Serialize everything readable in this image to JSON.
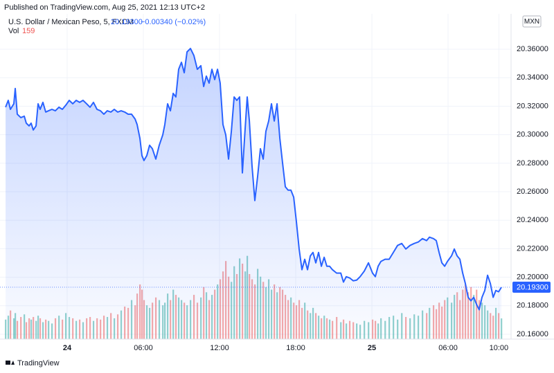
{
  "published": "Published on TradingView.com, Aug 25, 2021 12:13 UTC+2",
  "footer": "TradingView",
  "chart_data": {
    "type": "area",
    "title": "U.S. Dollar / Mexican Peso, 5, FXCM",
    "price_label": "20.19300",
    "change_label": "−0.00340 (−0.02%)",
    "currency": "MXN",
    "volume_title": "Vol",
    "volume_last": 159,
    "current": {
      "value": 20.193,
      "label": "20.19300"
    },
    "color": "#2962ff",
    "up_color": "rgba(38,166,154,0.5)",
    "down_color": "rgba(239,83,80,0.5)",
    "grid": true,
    "x": [
      -4.85,
      -4.64,
      -4.47,
      -4.2,
      -4.09,
      -3.93,
      -3.65,
      -3.38,
      -3.22,
      -3.0,
      -2.84,
      -2.67,
      -2.45,
      -2.29,
      -2.13,
      -1.91,
      -1.69,
      -1.47,
      -1.2,
      -0.93,
      -0.65,
      -0.38,
      -0.11,
      0.16,
      0.44,
      0.71,
      0.98,
      1.25,
      1.53,
      1.8,
      2.07,
      2.35,
      2.62,
      2.89,
      3.16,
      3.44,
      3.71,
      3.98,
      4.25,
      4.53,
      4.8,
      5.07,
      5.35,
      5.51,
      5.73,
      5.89,
      6.05,
      6.27,
      6.49,
      6.71,
      6.98,
      7.25,
      7.53,
      7.69,
      7.91,
      8.13,
      8.35,
      8.56,
      8.78,
      9.0,
      9.22,
      9.44,
      9.71,
      9.98,
      10.25,
      10.53,
      10.75,
      10.96,
      11.18,
      11.4,
      11.62,
      11.84,
      12.05,
      12.27,
      12.49,
      12.71,
      12.93,
      13.15,
      13.36,
      13.58,
      13.8,
      14.02,
      14.18,
      14.35,
      14.56,
      14.78,
      15.0,
      15.22,
      15.44,
      15.65,
      15.87,
      16.09,
      16.31,
      16.53,
      16.75,
      16.96,
      17.18,
      17.4,
      17.62,
      17.84,
      18.05,
      18.27,
      18.49,
      18.71,
      18.93,
      19.15,
      19.36,
      19.58,
      19.8,
      20.02,
      20.24,
      20.45,
      20.67,
      20.89,
      21.22,
      21.55,
      21.76,
      21.98,
      22.25,
      22.53,
      22.8,
      23.07,
      23.4,
      23.73,
      24.05,
      24.27,
      24.49,
      24.71,
      25.04,
      25.36,
      25.69,
      26.02,
      26.35,
      26.67,
      27.0,
      27.33,
      27.65,
      27.98,
      28.31,
      28.53,
      28.85,
      29.07,
      29.29,
      29.51,
      29.73,
      29.95,
      30.27,
      30.49,
      30.71,
      30.93,
      31.15,
      31.36,
      31.58,
      31.8,
      32.02,
      32.24,
      32.45,
      32.67,
      32.89,
      33.11,
      33.33,
      33.55,
      33.76,
      33.98,
      34.2
    ],
    "series": [
      {
        "name": "U.S. Dollar / Mexican Peso",
        "color": "#2962ff",
        "values": [
          20.3193,
          20.3241,
          20.3178,
          20.3217,
          20.3324,
          20.3144,
          20.312,
          20.313,
          20.3081,
          20.3062,
          20.3081,
          20.3033,
          20.3062,
          20.3217,
          20.3178,
          20.3227,
          20.3159,
          20.3168,
          20.3178,
          20.3168,
          20.3193,
          20.3178,
          20.3207,
          20.3241,
          20.3217,
          20.3241,
          20.3227,
          20.3241,
          20.3217,
          20.3193,
          20.3227,
          20.3178,
          20.3168,
          20.3144,
          20.3168,
          20.3159,
          20.3178,
          20.3159,
          20.3168,
          20.3159,
          20.3144,
          20.3144,
          20.311,
          20.3071,
          20.2974,
          20.2853,
          20.2819,
          20.2853,
          20.2926,
          20.2902,
          20.2829,
          20.2926,
          20.2999,
          20.3071,
          20.3217,
          20.3168,
          20.329,
          20.3265,
          20.3459,
          20.3508,
          20.3435,
          20.3581,
          20.3605,
          20.3556,
          20.3459,
          20.3484,
          20.3338,
          20.3411,
          20.3362,
          20.3459,
          20.3387,
          20.3459,
          20.3362,
          20.3071,
          20.2999,
          20.2829,
          20.3023,
          20.3265,
          20.3241,
          20.3265,
          20.2732,
          20.3047,
          20.3265,
          20.3096,
          20.278,
          20.2538,
          20.2708,
          20.2902,
          20.2829,
          20.3023,
          20.3096,
          20.3217,
          20.3096,
          20.3217,
          20.2974,
          20.2805,
          20.2635,
          20.2611,
          20.2611,
          20.2562,
          20.2392,
          20.2198,
          20.2053,
          20.2126,
          20.2053,
          20.215,
          20.2174,
          20.2101,
          20.2174,
          20.2077,
          20.214,
          20.2077,
          20.2077,
          20.2053,
          20.2029,
          20.2029,
          20.1966,
          20.2004,
          20.1995,
          20.1975,
          20.198,
          20.2004,
          20.2043,
          20.2101,
          20.2029,
          20.2004,
          20.2077,
          20.2111,
          20.2126,
          20.2126,
          20.2174,
          20.2223,
          20.2237,
          20.2198,
          20.2223,
          20.2237,
          20.2247,
          20.2271,
          20.2257,
          20.2281,
          20.2271,
          20.2257,
          20.2174,
          20.2101,
          20.2077,
          20.2111,
          20.215,
          20.2198,
          20.215,
          20.2126,
          20.2029,
          20.1956,
          20.1859,
          20.1835,
          20.1859,
          20.181,
          20.1772,
          20.1859,
          20.1907,
          20.2014,
          20.1956,
          20.1859,
          20.1907,
          20.1898,
          20.193
        ]
      },
      {
        "name": "Vol",
        "axis": "y2",
        "values": [
          150,
          180,
          220,
          160,
          200,
          140,
          170,
          190,
          130,
          160,
          150,
          170,
          140,
          180,
          160,
          130,
          150,
          140,
          120,
          160,
          180,
          150,
          200,
          170,
          160,
          140,
          150,
          130,
          160,
          170,
          140,
          160,
          150,
          180,
          170,
          200,
          160,
          190,
          220,
          250,
          240,
          300,
          260,
          350,
          420,
          380,
          300,
          260,
          240,
          280,
          320,
          300,
          260,
          280,
          350,
          300,
          380,
          340,
          320,
          300,
          280,
          260,
          300,
          340,
          280,
          320,
          400,
          360,
          300,
          340,
          380,
          420,
          460,
          520,
          600,
          480,
          440,
          560,
          500,
          620,
          580,
          520,
          640,
          500,
          460,
          420,
          540,
          480,
          440,
          400,
          460,
          380,
          420,
          360,
          400,
          380,
          340,
          300,
          320,
          280,
          260,
          300,
          240,
          280,
          220,
          200,
          240,
          200,
          180,
          160,
          180,
          160,
          150,
          140,
          170,
          130,
          150,
          120,
          140,
          130,
          120,
          110,
          140,
          130,
          150,
          140,
          120,
          160,
          140,
          170,
          180,
          150,
          200,
          170,
          160,
          190,
          180,
          220,
          200,
          240,
          260,
          230,
          280,
          250,
          300,
          320,
          280,
          340,
          360,
          300,
          380,
          420,
          360,
          400,
          340,
          380,
          300,
          280,
          260,
          220,
          200,
          180,
          240,
          200,
          159
        ]
      }
    ],
    "xlim": [
      -5.29,
      34.96
    ],
    "xticks": [
      {
        "value": 0,
        "label": "24"
      },
      {
        "value": 6,
        "label": "06:00"
      },
      {
        "value": 12,
        "label": "12:00"
      },
      {
        "value": 18,
        "label": "18:00"
      },
      {
        "value": 24,
        "label": "25"
      },
      {
        "value": 30,
        "label": "06:00"
      },
      {
        "value": 34,
        "label": "10:00"
      }
    ],
    "ylim": [
      20.1566,
      20.3848
    ],
    "yticks": [
      {
        "value": 20.16,
        "label": "20.16000"
      },
      {
        "value": 20.18,
        "label": "20.18000"
      },
      {
        "value": 20.2,
        "label": "20.20000"
      },
      {
        "value": 20.22,
        "label": "20.22000"
      },
      {
        "value": 20.24,
        "label": "20.24000"
      },
      {
        "value": 20.26,
        "label": "20.26000"
      },
      {
        "value": 20.28,
        "label": "20.28000"
      },
      {
        "value": 20.3,
        "label": "20.30000"
      },
      {
        "value": 20.32,
        "label": "20.32000"
      },
      {
        "value": 20.34,
        "label": "20.34000"
      },
      {
        "value": 20.36,
        "label": "20.36000"
      }
    ],
    "y2lim": [
      0,
      2500
    ]
  }
}
